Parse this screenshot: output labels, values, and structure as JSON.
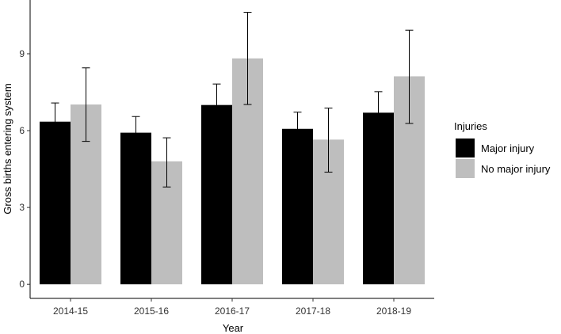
{
  "chart_data": {
    "type": "bar",
    "title": "",
    "xlabel": "Year",
    "ylabel": "Gross births entering system",
    "categories": [
      "2014-15",
      "2015-16",
      "2016-17",
      "2017-18",
      "2018-19"
    ],
    "series": [
      {
        "name": "Major injury",
        "color": "#000000",
        "values": [
          6.35,
          5.92,
          7.0,
          6.07,
          6.7
        ],
        "error_low": [
          5.6,
          5.25,
          6.12,
          5.35,
          5.85
        ],
        "error_high": [
          7.08,
          6.55,
          7.82,
          6.72,
          7.52
        ]
      },
      {
        "name": "No major injury",
        "color": "#bebebe",
        "values": [
          7.02,
          4.8,
          8.82,
          5.65,
          8.12
        ],
        "error_low": [
          5.58,
          3.8,
          7.02,
          4.38,
          6.28
        ],
        "error_high": [
          8.45,
          5.72,
          10.62,
          6.88,
          9.92
        ]
      }
    ],
    "yticks": [
      0,
      3,
      6,
      9
    ],
    "ylim": [
      -0.55,
      11.1
    ],
    "grid": false,
    "legend": {
      "title": "Injuries",
      "position": "right"
    }
  }
}
